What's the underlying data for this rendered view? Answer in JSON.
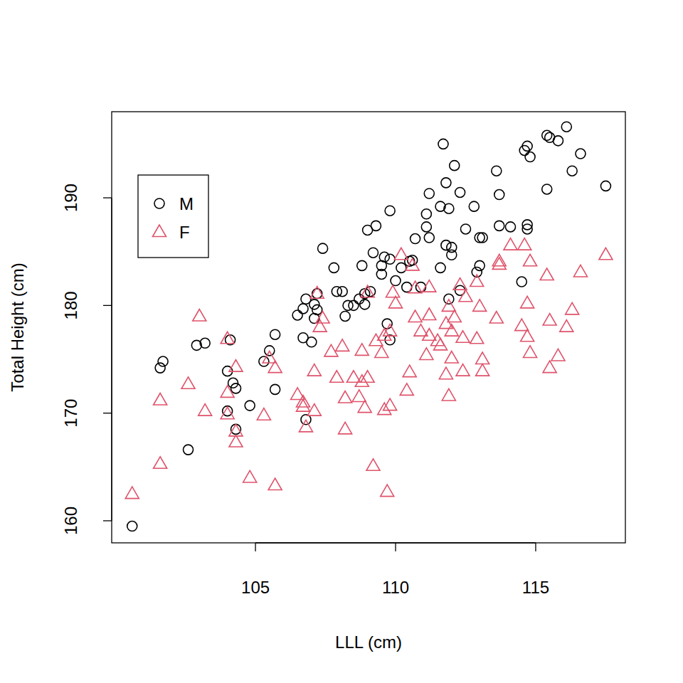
{
  "chart_data": {
    "type": "scatter",
    "xlabel": "LLL (cm)",
    "ylabel": "Total Height (cm)",
    "xlim": [
      99.87,
      118.2
    ],
    "ylim": [
      157.95,
      198.0
    ],
    "xticks": [
      105,
      110,
      115
    ],
    "yticks": [
      160,
      170,
      180,
      190
    ],
    "grid": false,
    "legend": "topleft",
    "series": [
      {
        "name": "M",
        "color": "#000000",
        "marker": "circle",
        "x": [
          100.6,
          101.6,
          101.7,
          102.6,
          102.9,
          103.2,
          104.0,
          104.0,
          104.1,
          104.2,
          104.3,
          104.3,
          104.8,
          105.3,
          105.5,
          105.7,
          105.7,
          106.5,
          106.7,
          106.7,
          106.8,
          106.8,
          107.0,
          107.1,
          107.1,
          107.2,
          107.2,
          107.4,
          107.8,
          107.9,
          108.1,
          108.2,
          108.3,
          108.5,
          108.7,
          108.8,
          108.9,
          108.9,
          109.0,
          109.1,
          109.2,
          109.3,
          109.5,
          109.5,
          109.6,
          109.8,
          109.7,
          109.8,
          109.8,
          110.0,
          110.2,
          110.4,
          110.5,
          110.6,
          110.7,
          110.9,
          111.1,
          111.1,
          111.2,
          111.2,
          111.6,
          111.6,
          111.7,
          111.8,
          111.8,
          111.9,
          111.9,
          112.0,
          112.0,
          112.1,
          112.3,
          112.3,
          112.5,
          112.8,
          112.9,
          113.0,
          113.1,
          113.0,
          113.6,
          113.7,
          113.7,
          114.1,
          114.5,
          114.6,
          114.7,
          114.7,
          114.7,
          114.8,
          115.4,
          115.4,
          115.5,
          115.8,
          116.1,
          116.3,
          116.6,
          117.5
        ],
        "values": [
          159.5,
          174.2,
          174.8,
          166.6,
          176.3,
          176.5,
          173.9,
          170.2,
          176.8,
          172.8,
          172.3,
          168.5,
          170.7,
          174.8,
          175.8,
          177.3,
          172.2,
          179.1,
          179.7,
          177.0,
          180.6,
          169.4,
          176.6,
          180.1,
          178.8,
          179.6,
          181.1,
          185.3,
          183.5,
          181.3,
          181.3,
          179.0,
          180.0,
          180.0,
          180.6,
          183.7,
          180.1,
          181.1,
          187.0,
          181.3,
          184.9,
          187.4,
          182.9,
          183.7,
          184.5,
          184.3,
          178.3,
          176.8,
          188.8,
          182.3,
          183.5,
          181.7,
          184.1,
          184.2,
          186.2,
          181.7,
          188.5,
          187.3,
          186.3,
          190.4,
          189.2,
          183.5,
          195.0,
          185.6,
          191.4,
          189.0,
          180.6,
          184.7,
          185.4,
          193.0,
          181.4,
          190.5,
          187.1,
          189.2,
          183.1,
          186.3,
          186.3,
          183.7,
          192.5,
          190.3,
          187.4,
          187.3,
          182.2,
          194.4,
          187.5,
          187.1,
          194.8,
          193.8,
          190.8,
          195.8,
          195.6,
          195.3,
          196.6,
          192.5,
          194.1,
          191.1
        ]
      },
      {
        "name": "F",
        "color": "#DF536B",
        "marker": "triangle",
        "x": [
          100.6,
          101.6,
          101.6,
          102.6,
          103.0,
          103.2,
          104.0,
          104.0,
          104.0,
          104.3,
          104.3,
          104.3,
          104.8,
          105.3,
          105.5,
          105.7,
          105.7,
          106.5,
          106.7,
          106.7,
          106.8,
          107.1,
          107.1,
          107.2,
          107.3,
          107.4,
          107.7,
          107.9,
          108.1,
          108.2,
          108.2,
          108.5,
          108.7,
          108.8,
          108.8,
          108.9,
          109.0,
          109.0,
          109.2,
          109.3,
          109.5,
          109.6,
          109.6,
          109.7,
          109.8,
          109.8,
          109.9,
          110.0,
          110.2,
          110.4,
          110.5,
          110.6,
          110.7,
          110.7,
          110.9,
          111.1,
          111.2,
          111.2,
          111.2,
          111.5,
          111.6,
          111.8,
          111.8,
          111.9,
          111.9,
          112.0,
          112.0,
          112.1,
          112.3,
          112.4,
          112.4,
          112.5,
          112.9,
          112.9,
          113.0,
          113.1,
          113.1,
          113.6,
          113.7,
          113.7,
          114.1,
          114.5,
          114.6,
          114.7,
          114.7,
          114.8,
          114.8,
          115.4,
          115.5,
          115.5,
          115.8,
          116.1,
          116.3,
          116.6,
          117.5
        ],
        "values": [
          162.5,
          171.2,
          165.3,
          172.7,
          179.0,
          170.2,
          176.9,
          171.9,
          169.9,
          174.3,
          168.3,
          167.3,
          164.0,
          169.8,
          175.1,
          174.2,
          163.3,
          171.7,
          171.0,
          170.6,
          168.7,
          173.9,
          170.2,
          181.1,
          178.0,
          178.8,
          175.7,
          173.3,
          176.2,
          168.5,
          171.4,
          173.3,
          171.5,
          175.8,
          172.9,
          170.5,
          173.3,
          181.2,
          165.1,
          176.7,
          175.6,
          170.3,
          177.2,
          162.7,
          170.7,
          177.6,
          181.2,
          180.2,
          184.7,
          172.1,
          173.8,
          183.7,
          181.6,
          178.9,
          177.6,
          175.4,
          181.7,
          179.1,
          177.2,
          176.7,
          176.3,
          173.6,
          178.3,
          171.6,
          179.9,
          177.6,
          175.1,
          178.9,
          181.9,
          173.9,
          177.0,
          180.8,
          176.9,
          182.2,
          179.9,
          175.0,
          173.9,
          178.8,
          184.1,
          183.8,
          185.6,
          178.1,
          185.6,
          180.2,
          177.1,
          184.1,
          175.6,
          182.8,
          178.6,
          174.2,
          175.3,
          178.0,
          179.6,
          183.1,
          184.7
        ]
      }
    ]
  }
}
